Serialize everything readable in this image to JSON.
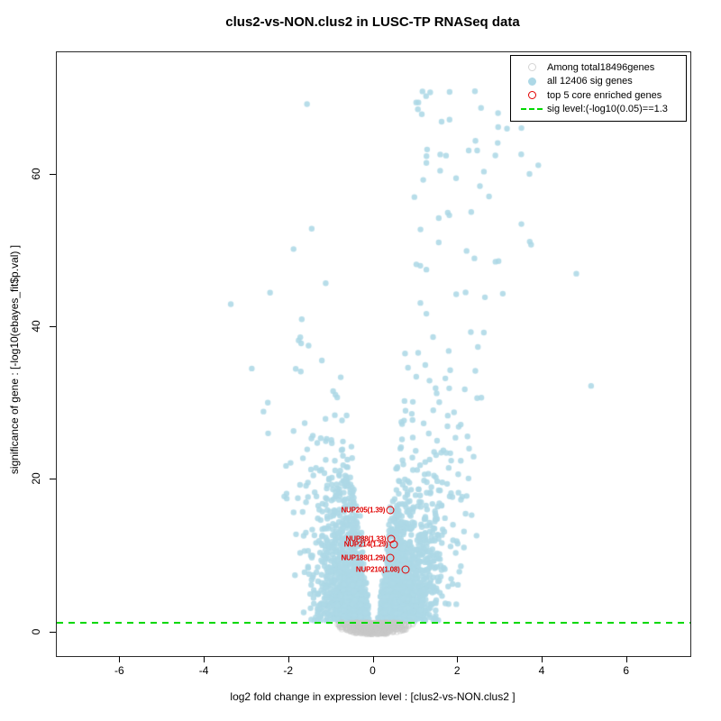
{
  "title": "clus2-vs-NON.clus2 in LUSC-TP RNASeq data",
  "axes": {
    "x": {
      "label": "log2 fold change in expression level : [clus2-vs-NON.clus2 ]",
      "ticks": [
        -6,
        -4,
        -2,
        0,
        2,
        4,
        6
      ],
      "range": [
        -7.5,
        7.5
      ]
    },
    "y": {
      "label": "significance of gene : [-log10(ebayes_fit$p.val) ]",
      "ticks": [
        0,
        20,
        40,
        60
      ],
      "range": [
        -3.1,
        76
      ]
    }
  },
  "legend": {
    "items": [
      {
        "label": "Among total18496genes",
        "symbol": "open-circle",
        "color": "#D4D4D4"
      },
      {
        "label": "all 12406 sig genes",
        "symbol": "filled-circle",
        "color": "#ADD8E6"
      },
      {
        "label": "top 5 core enriched genes",
        "symbol": "open-circle",
        "color": "#E10000"
      },
      {
        "label": "sig level:(-log10(0.05)==1.3",
        "symbol": "dashed-line",
        "color": "#00D800"
      }
    ]
  },
  "chart_data": {
    "type": "scatter",
    "title": "clus2-vs-NON.clus2 in LUSC-TP RNASeq data",
    "xlabel": "log2 fold change in expression level : [clus2-vs-NON.clus2 ]",
    "ylabel": "significance of gene : [-log10(ebayes_fit$p.val) ]",
    "xlim": [
      -7.5,
      7.5
    ],
    "ylim": [
      -3.1,
      76
    ],
    "grid": false,
    "legend_position": "top-right",
    "total_genes": 18496,
    "significant_genes": 12406,
    "sig_level_line": {
      "y": 1.3,
      "label": "sig level:(-log10(0.05)==1.3",
      "color": "#00D800",
      "style": "dashed"
    },
    "series": [
      {
        "name": "Among total18496genes",
        "role": "non-significant background genes",
        "marker": "open-circle",
        "color": "#D4D4D4",
        "count": 18496,
        "x_extent": [
          -0.95,
          0.95
        ],
        "y_extent": [
          -0.3,
          1.3
        ],
        "shape": "shallow lens centered at x=0 below the significance line"
      },
      {
        "name": "all 12406 sig genes",
        "role": "significant genes",
        "marker": "filled-circle",
        "color": "#ADD8E6",
        "count": 12406,
        "x_extent": [
          -3.4,
          5.2
        ],
        "y_extent": [
          1.3,
          71
        ],
        "shape": "volcano wings, dense from y=2 to y=20, sparse tail to y=71, narrow white gap at x=0 widening upward, right wing denser and wider"
      },
      {
        "name": "top 5 core enriched genes",
        "role": "highlighted genes",
        "marker": "open-circle",
        "color": "#E10000",
        "points": [
          {
            "gene": "NUP205",
            "score": 1.39,
            "label": "NUP205(1.39)",
            "x": 0.4,
            "y": 16.0
          },
          {
            "gene": "NUP88",
            "score": 1.33,
            "label": "NUP88(1.33)",
            "x": 0.42,
            "y": 12.2
          },
          {
            "gene": "NUP214",
            "score": 1.29,
            "label": "NUP214(1.29)",
            "x": 0.47,
            "y": 11.5
          },
          {
            "gene": "NUP188",
            "score": 1.29,
            "label": "NUP188(1.29)",
            "x": 0.4,
            "y": 9.8
          },
          {
            "gene": "NUP210",
            "score": 1.08,
            "label": "NUP210(1.08)",
            "x": 0.75,
            "y": 8.2
          }
        ]
      }
    ],
    "notable_points": [
      [
        -3.38,
        43.0
      ],
      [
        -2.45,
        44.5
      ],
      [
        1.8,
        70.8
      ],
      [
        2.4,
        70.9
      ],
      [
        2.95,
        66.2
      ],
      [
        1.25,
        61.5
      ],
      [
        3.9,
        61.2
      ],
      [
        5.15,
        32.3
      ],
      [
        4.8,
        47.0
      ],
      [
        3.5,
        53.5
      ]
    ],
    "render_model": {
      "seed": 1234,
      "blue_points_rendered": 3200,
      "gray_points_rendered": 950,
      "blue": {
        "y_min": 1.45,
        "y_exp_scale": 5.5,
        "tail_fraction": 0.03,
        "tail_y_range": [
          20,
          71
        ],
        "gap_base": 0.05,
        "gap_slope": 0.0155,
        "spread_base": 0.42,
        "spread_slope": 0.013,
        "pos_fraction": 0.55,
        "pos_stretch": 1.12,
        "x_min": -3.55,
        "x_max": 5.25
      },
      "gray": {
        "x_sd": 0.34,
        "x_max": 0.93,
        "y_top": 1.28,
        "bottom_depth": 1.55
      }
    }
  },
  "sig_line": {
    "value": 1.3,
    "color": "#00D800"
  }
}
